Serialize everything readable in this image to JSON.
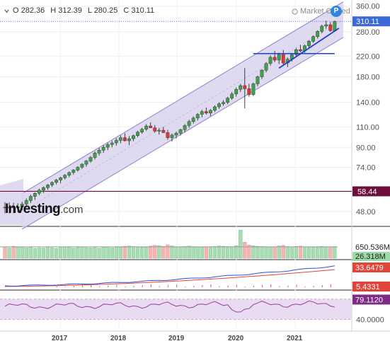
{
  "ohlc": {
    "open": "O 282.36",
    "high": "H 312.39",
    "low": "L 280.25",
    "close": "C 310.11"
  },
  "watermark": {
    "market_closed": "Market Closed",
    "brand_main": "Investing",
    "brand_suffix": ".com"
  },
  "colors": {
    "up": "#3fa14a",
    "down": "#e2342d",
    "channel_fill": "#d9d3ec",
    "channel_line": "#8e82c7",
    "trend_line": "#1a3fd6",
    "hline": "#6d0e3c",
    "macd_line": "#2f4fd8",
    "signal_line": "#e0453a",
    "rsi_line": "#9b3aa3",
    "rsi_band": "#eadcf0",
    "price_badge": "#3c68d8"
  },
  "chart_data": [
    {
      "type": "candlestick",
      "x_labels": [
        "2017",
        "2018",
        "2019",
        "2020",
        "2021"
      ],
      "scale": "log",
      "ylim": [
        42,
        372
      ],
      "y_ticks": [
        "360.00",
        "280.00",
        "220.00",
        "180.00",
        "140.00",
        "110.00",
        "90.00",
        "74.00",
        "58.44",
        "48.00"
      ],
      "current_price": "310.11",
      "horizontal_level": 58.44,
      "resistance_level": 226,
      "candles": [
        {
          "o": 50.0,
          "h": 52.5,
          "l": 47.1,
          "c": 49.8
        },
        {
          "o": 49.8,
          "h": 52.4,
          "l": 47.0,
          "c": 50.0
        },
        {
          "o": 50.0,
          "h": 52.2,
          "l": 47.2,
          "c": 49.7
        },
        {
          "o": 49.7,
          "h": 52.0,
          "l": 47.5,
          "c": 50.2
        },
        {
          "o": 50.2,
          "h": 52.8,
          "l": 48.5,
          "c": 51.6
        },
        {
          "o": 51.6,
          "h": 54.5,
          "l": 49.8,
          "c": 53.4
        },
        {
          "o": 53.4,
          "h": 56.6,
          "l": 52.1,
          "c": 55.6
        },
        {
          "o": 55.6,
          "h": 57.8,
          "l": 53.7,
          "c": 57.3
        },
        {
          "o": 57.3,
          "h": 60.0,
          "l": 56.3,
          "c": 59.1
        },
        {
          "o": 59.1,
          "h": 61.4,
          "l": 57.5,
          "c": 60.6
        },
        {
          "o": 60.6,
          "h": 62.8,
          "l": 59.3,
          "c": 62.2
        },
        {
          "o": 62.2,
          "h": 64.4,
          "l": 61.0,
          "c": 63.8
        },
        {
          "o": 63.8,
          "h": 66.0,
          "l": 62.6,
          "c": 65.3
        },
        {
          "o": 65.3,
          "h": 67.5,
          "l": 63.2,
          "c": 66.8
        },
        {
          "o": 66.8,
          "h": 69.2,
          "l": 65.7,
          "c": 68.5
        },
        {
          "o": 68.5,
          "h": 71.0,
          "l": 67.1,
          "c": 70.3
        },
        {
          "o": 70.3,
          "h": 72.7,
          "l": 68.9,
          "c": 72.0
        },
        {
          "o": 72.0,
          "h": 74.8,
          "l": 70.9,
          "c": 74.0
        },
        {
          "o": 74.0,
          "h": 77.0,
          "l": 72.8,
          "c": 76.3
        },
        {
          "o": 76.3,
          "h": 79.6,
          "l": 74.5,
          "c": 78.7
        },
        {
          "o": 78.7,
          "h": 82.5,
          "l": 77.4,
          "c": 81.5
        },
        {
          "o": 81.5,
          "h": 86.4,
          "l": 79.9,
          "c": 85.1
        },
        {
          "o": 85.1,
          "h": 89.4,
          "l": 83.1,
          "c": 87.5
        },
        {
          "o": 87.5,
          "h": 92.0,
          "l": 85.2,
          "c": 90.1
        },
        {
          "o": 90.1,
          "h": 94.2,
          "l": 87.6,
          "c": 92.5
        },
        {
          "o": 92.5,
          "h": 96.0,
          "l": 90.0,
          "c": 94.0
        },
        {
          "o": 94.0,
          "h": 98.5,
          "l": 91.5,
          "c": 96.4
        },
        {
          "o": 96.4,
          "h": 101.2,
          "l": 93.8,
          "c": 99.0
        },
        {
          "o": 99.0,
          "h": 103.3,
          "l": 95.5,
          "c": 96.0
        },
        {
          "o": 96.0,
          "h": 100.5,
          "l": 92.0,
          "c": 98.0
        },
        {
          "o": 98.0,
          "h": 102.0,
          "l": 95.7,
          "c": 101.0
        },
        {
          "o": 101.0,
          "h": 106.0,
          "l": 99.5,
          "c": 104.5
        },
        {
          "o": 104.5,
          "h": 109.0,
          "l": 102.8,
          "c": 107.5
        },
        {
          "o": 107.5,
          "h": 113.0,
          "l": 105.9,
          "c": 111.0
        },
        {
          "o": 111.0,
          "h": 115.0,
          "l": 108.7,
          "c": 109.0
        },
        {
          "o": 109.0,
          "h": 112.0,
          "l": 104.0,
          "c": 105.5
        },
        {
          "o": 105.5,
          "h": 109.0,
          "l": 102.0,
          "c": 106.5
        },
        {
          "o": 106.5,
          "h": 110.0,
          "l": 103.6,
          "c": 104.0
        },
        {
          "o": 104.0,
          "h": 107.0,
          "l": 97.0,
          "c": 99.0
        },
        {
          "o": 99.0,
          "h": 103.0,
          "l": 95.3,
          "c": 101.5
        },
        {
          "o": 101.5,
          "h": 105.0,
          "l": 98.4,
          "c": 103.5
        },
        {
          "o": 103.5,
          "h": 108.0,
          "l": 101.1,
          "c": 107.0
        },
        {
          "o": 107.0,
          "h": 113.0,
          "l": 104.3,
          "c": 111.5
        },
        {
          "o": 111.5,
          "h": 118.0,
          "l": 109.1,
          "c": 116.0
        },
        {
          "o": 116.0,
          "h": 122.0,
          "l": 113.8,
          "c": 120.0
        },
        {
          "o": 120.0,
          "h": 126.0,
          "l": 117.2,
          "c": 124.5
        },
        {
          "o": 124.5,
          "h": 130.0,
          "l": 121.0,
          "c": 128.0
        },
        {
          "o": 128.0,
          "h": 133.0,
          "l": 124.1,
          "c": 126.0
        },
        {
          "o": 126.0,
          "h": 131.0,
          "l": 122.3,
          "c": 129.5
        },
        {
          "o": 129.5,
          "h": 136.0,
          "l": 127.4,
          "c": 134.0
        },
        {
          "o": 134.0,
          "h": 140.0,
          "l": 131.3,
          "c": 138.0
        },
        {
          "o": 138.0,
          "h": 143.0,
          "l": 135.3,
          "c": 140.0
        },
        {
          "o": 140.0,
          "h": 148.0,
          "l": 137.6,
          "c": 146.0
        },
        {
          "o": 146.0,
          "h": 155.0,
          "l": 143.4,
          "c": 152.0
        },
        {
          "o": 152.0,
          "h": 162.0,
          "l": 148.1,
          "c": 159.0
        },
        {
          "o": 159.0,
          "h": 168.0,
          "l": 155.0,
          "c": 165.0
        },
        {
          "o": 165.0,
          "h": 196.0,
          "l": 132.0,
          "c": 160.0
        },
        {
          "o": 160.0,
          "h": 168.0,
          "l": 148.0,
          "c": 151.0
        },
        {
          "o": 151.0,
          "h": 170.0,
          "l": 149.0,
          "c": 168.0
        },
        {
          "o": 168.0,
          "h": 182.0,
          "l": 164.0,
          "c": 180.0
        },
        {
          "o": 180.0,
          "h": 194.0,
          "l": 176.0,
          "c": 192.0
        },
        {
          "o": 192.0,
          "h": 208.0,
          "l": 188.0,
          "c": 205.0
        },
        {
          "o": 205.0,
          "h": 222.0,
          "l": 201.0,
          "c": 218.0
        },
        {
          "o": 218.0,
          "h": 232.0,
          "l": 208.0,
          "c": 212.0
        },
        {
          "o": 212.0,
          "h": 228.0,
          "l": 204.0,
          "c": 224.0
        },
        {
          "o": 224.0,
          "h": 234.0,
          "l": 202.0,
          "c": 206.0
        },
        {
          "o": 206.0,
          "h": 218.0,
          "l": 198.0,
          "c": 214.0
        },
        {
          "o": 214.0,
          "h": 227.0,
          "l": 209.0,
          "c": 224.0
        },
        {
          "o": 224.0,
          "h": 238.0,
          "l": 219.0,
          "c": 235.0
        },
        {
          "o": 235.0,
          "h": 246.0,
          "l": 229.0,
          "c": 232.0
        },
        {
          "o": 232.0,
          "h": 247.0,
          "l": 228.0,
          "c": 244.0
        },
        {
          "o": 244.0,
          "h": 258.0,
          "l": 240.0,
          "c": 255.0
        },
        {
          "o": 255.0,
          "h": 270.0,
          "l": 251.0,
          "c": 267.0
        },
        {
          "o": 267.0,
          "h": 284.0,
          "l": 262.0,
          "c": 281.0
        },
        {
          "o": 281.0,
          "h": 300.0,
          "l": 276.0,
          "c": 296.0
        },
        {
          "o": 296.0,
          "h": 312.0,
          "l": 288.0,
          "c": 300.0
        },
        {
          "o": 300.0,
          "h": 308.0,
          "l": 280.0,
          "c": 283.0
        },
        {
          "o": 282.36,
          "h": 312.39,
          "l": 280.25,
          "c": 310.11
        }
      ]
    },
    {
      "type": "bar",
      "name": "volume",
      "labels": [
        "650.536M",
        "26.318M"
      ],
      "values_m": [
        258,
        238,
        276,
        248,
        264,
        240,
        252,
        231,
        242,
        237,
        255,
        243,
        229,
        260,
        247,
        253,
        236,
        249,
        262,
        244,
        239,
        257,
        233,
        248,
        266,
        241,
        252,
        258,
        275,
        283,
        268,
        256,
        262,
        249,
        281,
        298,
        290,
        274,
        311,
        285,
        262,
        258,
        270,
        279,
        268,
        257,
        249,
        262,
        255,
        270,
        283,
        277,
        268,
        261,
        290,
        650,
        372,
        304,
        288,
        276,
        270,
        262,
        255,
        259,
        284,
        298,
        268,
        261,
        272,
        281,
        266,
        258,
        253,
        262,
        271,
        259,
        247,
        268
      ],
      "avg_m": 262
    },
    {
      "type": "line",
      "name": "macd",
      "labels": [
        "33.6479",
        "5.4331"
      ]
    },
    {
      "type": "line",
      "name": "rsi",
      "labels": [
        "79.1120",
        "40.0000"
      ],
      "band": [
        40,
        80
      ]
    }
  ]
}
